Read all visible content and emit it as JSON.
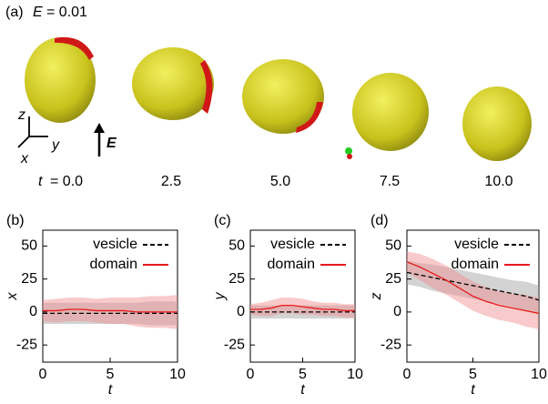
{
  "panel_a": {
    "label": "(a)",
    "field_symbol": "E",
    "field_value": "= 0.01",
    "time_symbol": "t",
    "times": [
      "= 0.0",
      "2.5",
      "5.0",
      "7.5",
      "10.0"
    ],
    "axis_z": "z",
    "axis_y": "y",
    "axis_x": "x",
    "field_arrow": "E"
  },
  "chart_data": [
    {
      "type": "line",
      "panel_label": "(b)",
      "xlabel": "t",
      "ylabel": "x",
      "xlim": [
        0,
        10
      ],
      "ylim": [
        -38,
        62
      ],
      "xticks": [
        0,
        5,
        10
      ],
      "yticks": [
        -25,
        0,
        25,
        50
      ],
      "x": [
        0,
        1,
        2,
        3,
        4,
        5,
        6,
        7,
        8,
        9,
        10
      ],
      "series": [
        {
          "name": "vesicle",
          "color": "#000000",
          "band_color": "#9e9e9e",
          "dashed": true,
          "values": [
            -1,
            -1,
            -1,
            -1,
            -1,
            -1,
            -1,
            -1,
            -1,
            -1,
            -1
          ],
          "error": [
            8,
            8,
            8,
            8,
            8,
            8,
            8,
            8,
            9,
            9,
            9
          ]
        },
        {
          "name": "domain",
          "color": "#e8191c",
          "band_color": "#f08a8c",
          "dashed": false,
          "values": [
            1,
            1,
            2,
            2,
            1,
            1,
            1,
            0,
            0,
            0,
            0
          ],
          "error": [
            8,
            9,
            9,
            9,
            9,
            10,
            10,
            11,
            12,
            12,
            13
          ]
        }
      ]
    },
    {
      "type": "line",
      "panel_label": "(c)",
      "xlabel": "t",
      "ylabel": "y",
      "xlim": [
        0,
        10
      ],
      "ylim": [
        -38,
        62
      ],
      "xticks": [
        0,
        5,
        10
      ],
      "yticks": [
        -25,
        0,
        25,
        50
      ],
      "x": [
        0,
        1,
        2,
        3,
        4,
        5,
        6,
        7,
        8,
        9,
        10
      ],
      "series": [
        {
          "name": "vesicle",
          "color": "#000000",
          "band_color": "#9e9e9e",
          "dashed": true,
          "values": [
            0,
            0,
            0,
            0,
            0,
            0,
            0,
            0,
            0,
            0,
            0
          ],
          "error": [
            5,
            5,
            5,
            5,
            5,
            5,
            5,
            5,
            5,
            5,
            5
          ]
        },
        {
          "name": "domain",
          "color": "#e8191c",
          "band_color": "#f08a8c",
          "dashed": false,
          "values": [
            2,
            2,
            3,
            5,
            5,
            4,
            3,
            2,
            2,
            1,
            1
          ],
          "error": [
            4,
            5,
            6,
            6,
            6,
            6,
            5,
            5,
            5,
            5,
            5
          ]
        }
      ]
    },
    {
      "type": "line",
      "panel_label": "(d)",
      "xlabel": "t",
      "ylabel": "z",
      "xlim": [
        0,
        10
      ],
      "ylim": [
        -38,
        62
      ],
      "xticks": [
        0,
        5,
        10
      ],
      "yticks": [
        -25,
        0,
        25,
        50
      ],
      "x": [
        0,
        1,
        2,
        3,
        4,
        5,
        6,
        7,
        8,
        9,
        10
      ],
      "series": [
        {
          "name": "vesicle",
          "color": "#000000",
          "band_color": "#9e9e9e",
          "dashed": true,
          "values": [
            30,
            28,
            26,
            24,
            22,
            20,
            18,
            16,
            14,
            12,
            9
          ],
          "error": [
            9,
            9,
            10,
            10,
            10,
            10,
            10,
            10,
            10,
            11,
            11
          ]
        },
        {
          "name": "domain",
          "color": "#e8191c",
          "band_color": "#f08a8c",
          "dashed": false,
          "values": [
            38,
            34,
            29,
            24,
            18,
            12,
            8,
            5,
            3,
            1,
            -1
          ],
          "error": [
            8,
            10,
            11,
            11,
            11,
            11,
            11,
            11,
            11,
            12,
            12
          ]
        }
      ]
    }
  ]
}
